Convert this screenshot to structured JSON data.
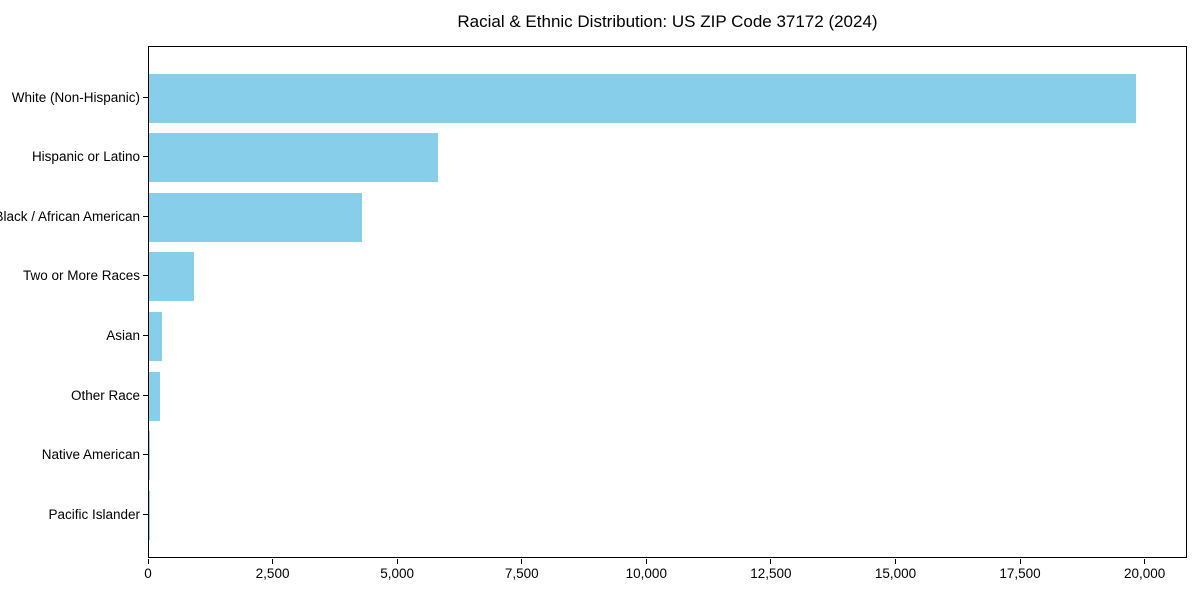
{
  "title": "Racial & Ethnic Distribution: US ZIP Code 37172 (2024)",
  "chart_data": {
    "type": "bar",
    "orientation": "horizontal",
    "title": "Racial & Ethnic Distribution: US ZIP Code 37172 (2024)",
    "categories": [
      "White (Non-Hispanic)",
      "Hispanic or Latino",
      "Black / African American",
      "Two or More Races",
      "Asian",
      "Other Race",
      "Native American",
      "Pacific Islander"
    ],
    "values": [
      19800,
      5800,
      4280,
      910,
      255,
      215,
      30,
      8
    ],
    "xlabel": "",
    "ylabel": "",
    "xlim": [
      0,
      20850
    ],
    "xticks": [
      0,
      2500,
      5000,
      7500,
      10000,
      12500,
      15000,
      17500,
      20000
    ],
    "xtick_labels": [
      "0",
      "2,500",
      "5,000",
      "7,500",
      "10,000",
      "12,500",
      "15,000",
      "17,500",
      "20,000"
    ],
    "bar_color": "#87CEEB",
    "axis_color": "#000000",
    "grid": false,
    "legend": null,
    "bar_order": "largest at top"
  }
}
